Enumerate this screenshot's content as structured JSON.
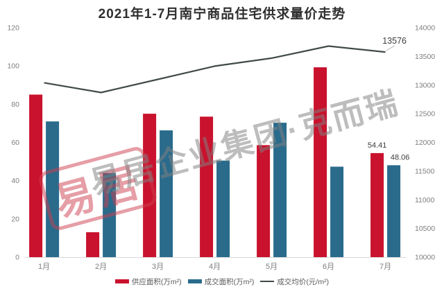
{
  "title": "2021年1-7月南宁商品住宅供求量价走势",
  "watermark": {
    "text": "易居企业集团·克而瑞",
    "stamp_text": "易居"
  },
  "colors": {
    "supply": "#c9122d",
    "deal": "#2a6b8c",
    "price_line": "#404a47",
    "axis_text": "#7d7d7d",
    "label_text": "#3d3d3d",
    "axis_line": "#d9d9d9",
    "leader_line": "#b5bcbc"
  },
  "legend": [
    {
      "label": "供应面积(万m²)",
      "type": "bar",
      "color_key": "supply"
    },
    {
      "label": "成交面积(万m²)",
      "type": "bar",
      "color_key": "deal"
    },
    {
      "label": "成交均价(元/m²)",
      "type": "line",
      "color_key": "price_line"
    }
  ],
  "chart_data": {
    "type": "bar+line combo",
    "title": "2021年1-7月南宁商品住宅供求量价走势",
    "categories": [
      "1月",
      "2月",
      "3月",
      "4月",
      "5月",
      "6月",
      "7月"
    ],
    "series": [
      {
        "name": "供应面积(万m²)",
        "type": "bar",
        "axis": "left",
        "color_key": "supply",
        "values": [
          85,
          13,
          75,
          73.5,
          58.6,
          99.3,
          54.41
        ]
      },
      {
        "name": "成交面积(万m²)",
        "type": "bar",
        "axis": "left",
        "color_key": "deal",
        "values": [
          71,
          44,
          66.3,
          50.5,
          70.3,
          47.3,
          48.06
        ]
      },
      {
        "name": "成交均价(元/m²)",
        "type": "line",
        "axis": "right",
        "color_key": "price_line",
        "values": [
          13040,
          12870,
          13100,
          13330,
          13470,
          13680,
          13576
        ]
      }
    ],
    "left_axis": {
      "min": 0,
      "max": 120,
      "step": 20,
      "ticks": [
        "0",
        "20",
        "40",
        "60",
        "80",
        "100",
        "120"
      ]
    },
    "right_axis": {
      "min": 10000,
      "max": 14000,
      "step": 500,
      "ticks": [
        "10000",
        "10500",
        "11000",
        "11500",
        "12000",
        "12500",
        "13000",
        "13500",
        "14000"
      ]
    },
    "data_labels": [
      {
        "series": 0,
        "index": 6,
        "text": "54.41"
      },
      {
        "series": 1,
        "index": 6,
        "text": "48.06"
      },
      {
        "series": 2,
        "index": 6,
        "text": "13576"
      }
    ],
    "grid": false,
    "legend_position": "bottom"
  }
}
